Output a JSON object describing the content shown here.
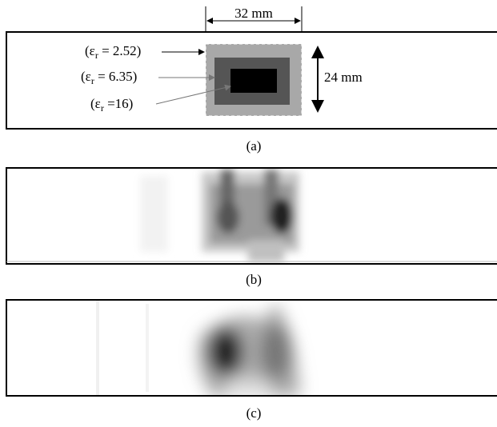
{
  "panel_a": {
    "width_label": "32 mm",
    "height_label": "24 mm",
    "labels": [
      {
        "prefix": "(ε",
        "sub": "r",
        "suffix": " = 2.52)"
      },
      {
        "prefix": "(ε",
        "sub": "r",
        "suffix": " = 6.35)"
      },
      {
        "prefix": "(ε",
        "sub": "r",
        "suffix": " =16)"
      }
    ],
    "caption": "(a)"
  },
  "panel_b": {
    "caption": "(b)"
  },
  "panel_c": {
    "caption": "(c)"
  }
}
